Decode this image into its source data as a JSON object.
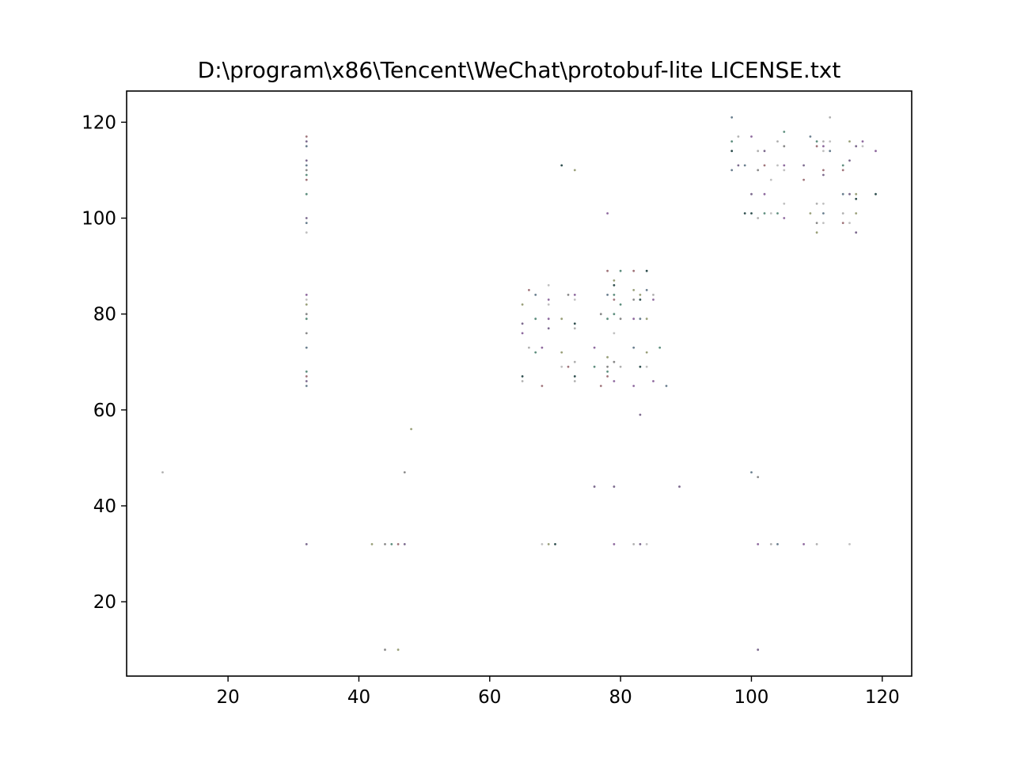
{
  "chart_data": {
    "type": "scatter",
    "title": "D:\\program\\x86\\Tencent\\WeChat\\protobuf-lite LICENSE.txt",
    "xlabel": "",
    "ylabel": "",
    "xlim": [
      4.5,
      124.5
    ],
    "ylim": [
      4.5,
      126.5
    ],
    "xticks": [
      20,
      40,
      60,
      80,
      100,
      120
    ],
    "yticks": [
      20,
      40,
      60,
      80,
      100,
      120
    ],
    "xtick_labels": [
      "20",
      "40",
      "60",
      "80",
      "100",
      "120"
    ],
    "ytick_labels": [
      "20",
      "40",
      "60",
      "80",
      "100",
      "120"
    ],
    "grid": false,
    "legend": "none",
    "point_colors": [
      "#8a8a8a",
      "#b0b0b0",
      "#6a7f8f",
      "#2f4f4f",
      "#7d6b8f",
      "#9aa07a",
      "#a0747a",
      "#c0c0c0",
      "#5f8f7f",
      "#8f6a9f"
    ],
    "points": [
      [
        10,
        47
      ],
      [
        32,
        117
      ],
      [
        32,
        116
      ],
      [
        32,
        115
      ],
      [
        32,
        112
      ],
      [
        32,
        111
      ],
      [
        32,
        110
      ],
      [
        32,
        109
      ],
      [
        32,
        108
      ],
      [
        32,
        105
      ],
      [
        32,
        100
      ],
      [
        32,
        99
      ],
      [
        32,
        97
      ],
      [
        32,
        84
      ],
      [
        32,
        83
      ],
      [
        32,
        82
      ],
      [
        32,
        80
      ],
      [
        32,
        79
      ],
      [
        32,
        76
      ],
      [
        32,
        73
      ],
      [
        32,
        68
      ],
      [
        32,
        67
      ],
      [
        32,
        66
      ],
      [
        32,
        65
      ],
      [
        32,
        32
      ],
      [
        42,
        32
      ],
      [
        44,
        32
      ],
      [
        45,
        32
      ],
      [
        46,
        32
      ],
      [
        47,
        32
      ],
      [
        47,
        47
      ],
      [
        48,
        56
      ],
      [
        44,
        10
      ],
      [
        46,
        10
      ],
      [
        65,
        82
      ],
      [
        65,
        78
      ],
      [
        65,
        76
      ],
      [
        65,
        67
      ],
      [
        65,
        66
      ],
      [
        66,
        85
      ],
      [
        66,
        73
      ],
      [
        67,
        84
      ],
      [
        67,
        79
      ],
      [
        67,
        72
      ],
      [
        68,
        73
      ],
      [
        68,
        65
      ],
      [
        69,
        86
      ],
      [
        69,
        83
      ],
      [
        69,
        82
      ],
      [
        69,
        79
      ],
      [
        69,
        77
      ],
      [
        71,
        79
      ],
      [
        71,
        72
      ],
      [
        71,
        69
      ],
      [
        72,
        84
      ],
      [
        72,
        69
      ],
      [
        73,
        84
      ],
      [
        73,
        83
      ],
      [
        73,
        78
      ],
      [
        73,
        77
      ],
      [
        73,
        70
      ],
      [
        73,
        67
      ],
      [
        73,
        66
      ],
      [
        71,
        111
      ],
      [
        73,
        110
      ],
      [
        68,
        32
      ],
      [
        69,
        32
      ],
      [
        70,
        32
      ],
      [
        76,
        73
      ],
      [
        76,
        69
      ],
      [
        76,
        44
      ],
      [
        77,
        80
      ],
      [
        77,
        65
      ],
      [
        78,
        89
      ],
      [
        78,
        84
      ],
      [
        78,
        79
      ],
      [
        78,
        71
      ],
      [
        78,
        69
      ],
      [
        78,
        68
      ],
      [
        78,
        67
      ],
      [
        78,
        101
      ],
      [
        79,
        87
      ],
      [
        79,
        86
      ],
      [
        79,
        84
      ],
      [
        79,
        83
      ],
      [
        79,
        80
      ],
      [
        79,
        76
      ],
      [
        79,
        70
      ],
      [
        79,
        66
      ],
      [
        79,
        44
      ],
      [
        79,
        32
      ],
      [
        80,
        89
      ],
      [
        80,
        82
      ],
      [
        80,
        79
      ],
      [
        80,
        69
      ],
      [
        82,
        89
      ],
      [
        82,
        85
      ],
      [
        82,
        83
      ],
      [
        82,
        79
      ],
      [
        82,
        73
      ],
      [
        82,
        65
      ],
      [
        82,
        32
      ],
      [
        83,
        84
      ],
      [
        83,
        83
      ],
      [
        83,
        79
      ],
      [
        83,
        69
      ],
      [
        83,
        59
      ],
      [
        83,
        32
      ],
      [
        84,
        89
      ],
      [
        84,
        85
      ],
      [
        84,
        79
      ],
      [
        84,
        72
      ],
      [
        84,
        69
      ],
      [
        84,
        32
      ],
      [
        85,
        84
      ],
      [
        85,
        83
      ],
      [
        85,
        66
      ],
      [
        86,
        73
      ],
      [
        87,
        65
      ],
      [
        89,
        44
      ],
      [
        97,
        121
      ],
      [
        97,
        116
      ],
      [
        97,
        114
      ],
      [
        97,
        110
      ],
      [
        98,
        117
      ],
      [
        98,
        111
      ],
      [
        99,
        111
      ],
      [
        99,
        101
      ],
      [
        100,
        117
      ],
      [
        100,
        105
      ],
      [
        100,
        101
      ],
      [
        100,
        47
      ],
      [
        101,
        114
      ],
      [
        101,
        110
      ],
      [
        101,
        100
      ],
      [
        101,
        46
      ],
      [
        101,
        32
      ],
      [
        101,
        10
      ],
      [
        102,
        114
      ],
      [
        102,
        111
      ],
      [
        102,
        105
      ],
      [
        102,
        101
      ],
      [
        103,
        108
      ],
      [
        103,
        101
      ],
      [
        103,
        32
      ],
      [
        104,
        116
      ],
      [
        104,
        111
      ],
      [
        104,
        101
      ],
      [
        104,
        32
      ],
      [
        105,
        118
      ],
      [
        105,
        115
      ],
      [
        105,
        111
      ],
      [
        105,
        110
      ],
      [
        105,
        103
      ],
      [
        105,
        100
      ],
      [
        108,
        111
      ],
      [
        108,
        108
      ],
      [
        108,
        32
      ],
      [
        109,
        117
      ],
      [
        109,
        101
      ],
      [
        110,
        116
      ],
      [
        110,
        115
      ],
      [
        110,
        103
      ],
      [
        110,
        99
      ],
      [
        110,
        97
      ],
      [
        110,
        32
      ],
      [
        111,
        116
      ],
      [
        111,
        115
      ],
      [
        111,
        114
      ],
      [
        111,
        110
      ],
      [
        111,
        109
      ],
      [
        111,
        103
      ],
      [
        111,
        101
      ],
      [
        111,
        99
      ],
      [
        112,
        121
      ],
      [
        112,
        116
      ],
      [
        112,
        114
      ],
      [
        114,
        111
      ],
      [
        114,
        110
      ],
      [
        114,
        105
      ],
      [
        114,
        101
      ],
      [
        114,
        99
      ],
      [
        115,
        116
      ],
      [
        115,
        112
      ],
      [
        115,
        105
      ],
      [
        115,
        99
      ],
      [
        115,
        32
      ],
      [
        116,
        115
      ],
      [
        116,
        105
      ],
      [
        116,
        104
      ],
      [
        116,
        101
      ],
      [
        116,
        97
      ],
      [
        117,
        116
      ],
      [
        117,
        115
      ],
      [
        119,
        114
      ],
      [
        119,
        105
      ]
    ]
  }
}
